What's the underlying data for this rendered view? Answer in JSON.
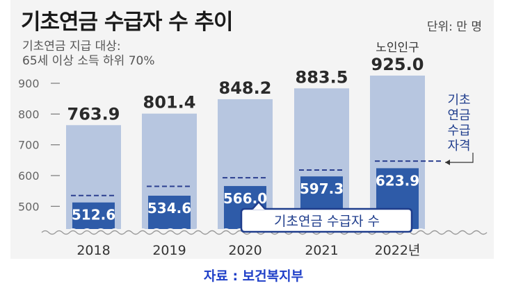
{
  "title": "기초연금 수급자 수 추이",
  "unit": "단위: 만 명",
  "subtitle_line1": "기초연금 지급 대상:",
  "subtitle_line2": "65세 이상 소득 하위 70%",
  "source": "자료 : 보건복지부",
  "colors": {
    "elderly_bar": "#b7c6e0",
    "recipient_bar": "#2e5ba8",
    "text_blue": "#1f3d8c",
    "panel": "#f4f4f4"
  },
  "chart_data": {
    "type": "bar",
    "categories": [
      "2018",
      "2019",
      "2020",
      "2021",
      "2022년"
    ],
    "series": [
      {
        "name": "노인인구",
        "values": [
          763.9,
          801.4,
          848.2,
          883.5,
          925.0
        ],
        "labels": [
          "763.9",
          "801.4",
          "848.2",
          "883.5",
          "925.0"
        ]
      },
      {
        "name": "기초연금 수급자 수",
        "values": [
          512.6,
          534.6,
          566.0,
          597.3,
          623.9
        ],
        "labels": [
          "512.6",
          "534.6",
          "566.0",
          "597.3",
          "623.9"
        ]
      },
      {
        "name": "기초연금 수급자격",
        "values": [
          535,
          565,
          593,
          618,
          647
        ]
      }
    ],
    "yticks": [
      "900",
      "800",
      "700",
      "600",
      "500"
    ],
    "ytick_values": [
      900,
      800,
      700,
      600,
      500
    ],
    "ylim": [
      450,
      925
    ],
    "axis_break": true,
    "annotation_elderly": "노인인구",
    "annotation_recipients": "기초연금 수급자 수",
    "annotation_eligibility": [
      "기초",
      "연금",
      "수급",
      "자격"
    ]
  }
}
